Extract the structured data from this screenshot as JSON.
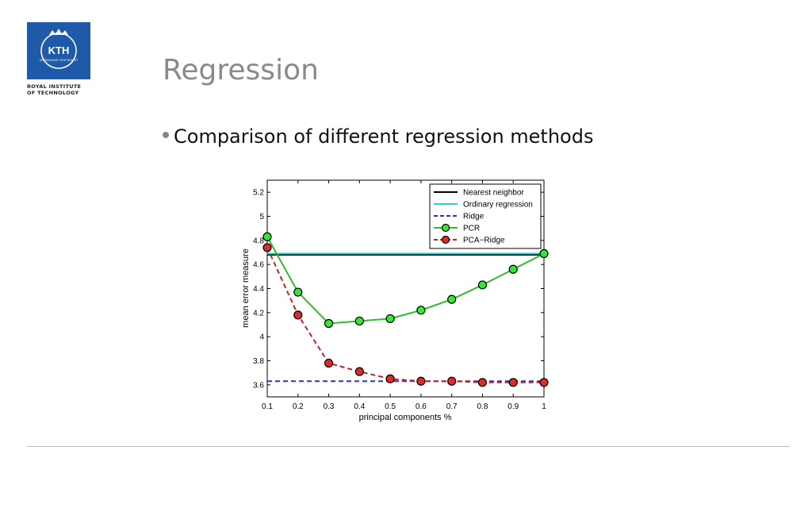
{
  "header": {
    "logo_text": "KTH",
    "logo_sub_text": "VETENSKAP OCH KONST",
    "logo_caption_line1": "ROYAL INSTITUTE",
    "logo_caption_line2": "OF TECHNOLOGY",
    "title": "Regression"
  },
  "body": {
    "bullet": "Comparison of different regression methods"
  },
  "colors": {
    "brand_blue": "#1e5aa8",
    "title_gray": "#8a8a8a"
  },
  "chart_data": {
    "type": "line",
    "title": "",
    "xlabel": "principal components %",
    "ylabel": "mean error measure",
    "xlim": [
      0.1,
      1.0
    ],
    "ylim": [
      3.5,
      5.3
    ],
    "x_ticks": [
      0.1,
      0.2,
      0.3,
      0.4,
      0.5,
      0.6,
      0.7,
      0.8,
      0.9,
      1
    ],
    "x_tick_labels": [
      "0.1",
      "0.2",
      "0.3",
      "0.4",
      "0.5",
      "0.6",
      "0.7",
      "0.8",
      "0.9",
      "1"
    ],
    "y_ticks": [
      3.6,
      3.8,
      4.0,
      4.2,
      4.4,
      4.6,
      4.8,
      5.0,
      5.2
    ],
    "y_tick_labels": [
      "3.6",
      "3.8",
      "4",
      "4.2",
      "4.4",
      "4.6",
      "4.8",
      "5",
      "5.2"
    ],
    "legend_position": "top-right",
    "grid": false,
    "series": [
      {
        "name": "Nearest neighbor",
        "style": "solid",
        "color": "#000000",
        "markers": false,
        "x": [
          0.1,
          1.0
        ],
        "y": [
          4.68,
          4.68
        ]
      },
      {
        "name": "Ordinary regression",
        "style": "solid",
        "color": "#22d3d3",
        "markers": false,
        "x": [
          0.1,
          1.0
        ],
        "y": [
          4.69,
          4.69
        ]
      },
      {
        "name": "Ridge",
        "style": "dashed",
        "color": "#2a35c8",
        "markers": false,
        "x": [
          0.1,
          1.0
        ],
        "y": [
          3.63,
          3.63
        ]
      },
      {
        "name": "PCR",
        "style": "solid",
        "color": "#2bbf2b",
        "markers": true,
        "marker_color": "#37e637",
        "x": [
          0.1,
          0.2,
          0.3,
          0.4,
          0.5,
          0.6,
          0.7,
          0.8,
          0.9,
          1.0
        ],
        "y": [
          4.83,
          4.37,
          4.11,
          4.13,
          4.15,
          4.22,
          4.31,
          4.43,
          4.56,
          4.69
        ]
      },
      {
        "name": "PCA−Ridge",
        "style": "dashed",
        "color": "#c0222a",
        "markers": true,
        "marker_color": "#dd2a2a",
        "x": [
          0.1,
          0.2,
          0.3,
          0.4,
          0.5,
          0.6,
          0.7,
          0.8,
          0.9,
          1.0
        ],
        "y": [
          4.74,
          4.18,
          3.78,
          3.71,
          3.65,
          3.63,
          3.63,
          3.62,
          3.62,
          3.62
        ]
      }
    ]
  }
}
